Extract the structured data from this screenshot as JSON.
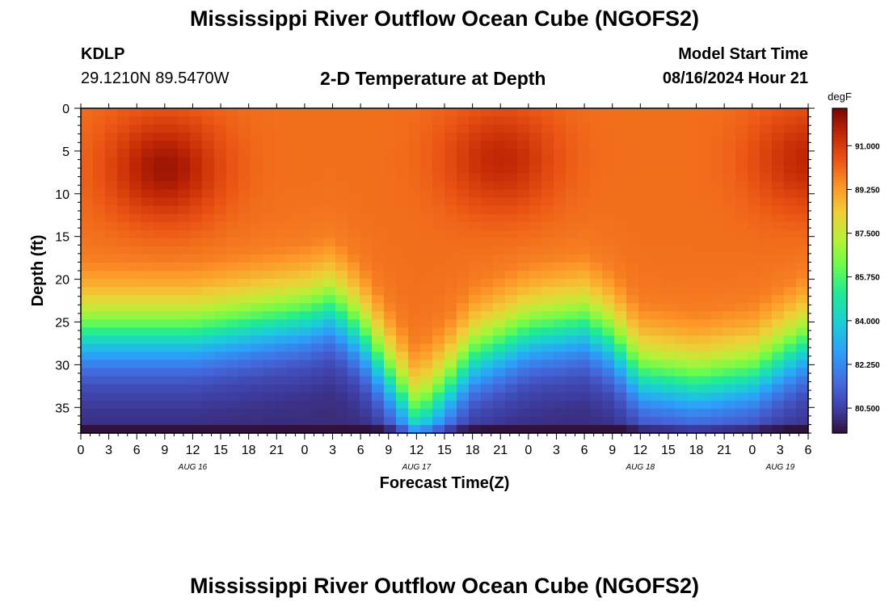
{
  "header": {
    "title": "Mississippi River Outflow Ocean Cube (NGOFS2)",
    "station_id": "KDLP",
    "coords": "29.1210N  89.5470W",
    "subtitle": "2-D Temperature at Depth",
    "model_label": "Model Start Time",
    "model_time": "08/16/2024 Hour 21"
  },
  "footer": {
    "title": "Mississippi River Outflow Ocean Cube (NGOFS2)"
  },
  "chart_data": {
    "type": "heatmap",
    "title": "2-D Temperature at Depth",
    "xlabel": "Forecast Time(Z)",
    "ylabel": "Depth (ft)",
    "x_range_hours": [
      0,
      78
    ],
    "x_tick_labels": [
      "0",
      "3",
      "6",
      "9",
      "12",
      "15",
      "18",
      "21",
      "0",
      "3",
      "6",
      "9",
      "12",
      "15",
      "18",
      "21",
      "0",
      "3",
      "6",
      "9",
      "12",
      "15",
      "18",
      "21",
      "0",
      "3",
      "6"
    ],
    "date_labels": [
      {
        "label": "AUG 16",
        "hour": 12
      },
      {
        "label": "AUG 17",
        "hour": 36
      },
      {
        "label": "AUG 18",
        "hour": 60
      },
      {
        "label": "AUG 19",
        "hour": 75
      }
    ],
    "y_range_ft": [
      0,
      38
    ],
    "y_ticks": [
      0,
      5,
      10,
      15,
      20,
      25,
      30,
      35
    ],
    "colorbar": {
      "unit": "degF",
      "min": 79.5,
      "max": 92.5,
      "tick_labels": [
        "91.000",
        "89.250",
        "87.500",
        "85.750",
        "84.000",
        "82.250",
        "80.500"
      ],
      "tick_values": [
        91.0,
        89.25,
        87.5,
        85.75,
        84.0,
        82.25,
        80.5
      ]
    },
    "thermocline_depth_ft": [
      {
        "hour": 0,
        "depth": 24
      },
      {
        "hour": 12,
        "depth": 24
      },
      {
        "hour": 24,
        "depth": 22
      },
      {
        "hour": 27,
        "depth": 21
      },
      {
        "hour": 30,
        "depth": 24
      },
      {
        "hour": 33,
        "depth": 29
      },
      {
        "hour": 36,
        "depth": 34
      },
      {
        "hour": 39,
        "depth": 31
      },
      {
        "hour": 42,
        "depth": 27
      },
      {
        "hour": 48,
        "depth": 24
      },
      {
        "hour": 54,
        "depth": 23
      },
      {
        "hour": 57,
        "depth": 25
      },
      {
        "hour": 60,
        "depth": 29
      },
      {
        "hour": 66,
        "depth": 30
      },
      {
        "hour": 72,
        "depth": 29
      },
      {
        "hour": 75,
        "depth": 27
      },
      {
        "hour": 78,
        "depth": 25
      }
    ],
    "surface_warm_cores": [
      {
        "hour": 9,
        "depth_ft": 7,
        "value_degF": 92.0
      },
      {
        "hour": 45,
        "depth_ft": 6,
        "value_degF": 91.5
      },
      {
        "hour": 78,
        "depth_ft": 6,
        "value_degF": 91.5
      }
    ],
    "surface_temp_typical_degF": 90.0,
    "bottom_temp_degF": 80.0
  }
}
